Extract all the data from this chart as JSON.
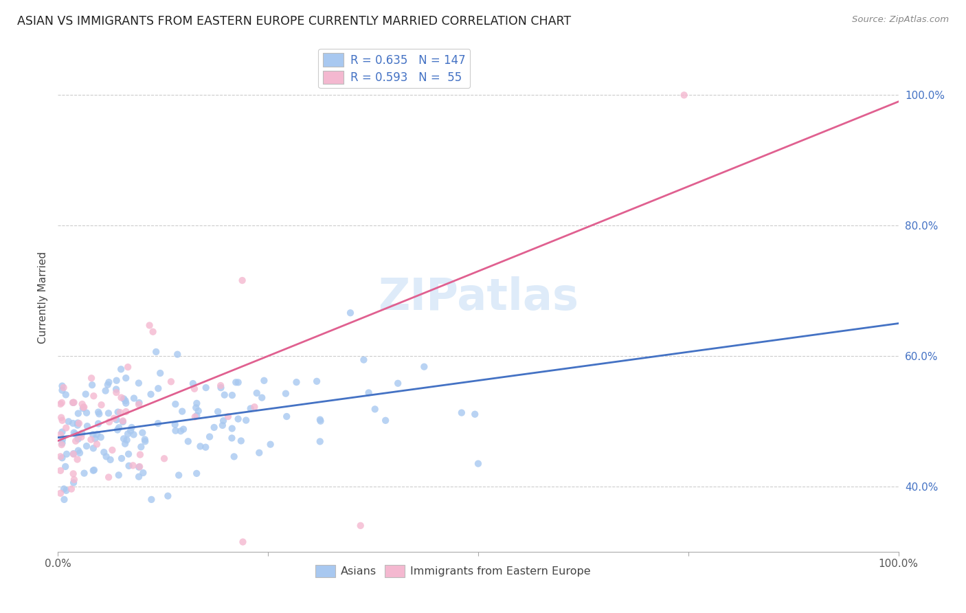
{
  "title": "ASIAN VS IMMIGRANTS FROM EASTERN EUROPE CURRENTLY MARRIED CORRELATION CHART",
  "source": "Source: ZipAtlas.com",
  "ylabel": "Currently Married",
  "color_asian": "#A8C8F0",
  "color_eastern": "#F4B8D0",
  "line_color_asian": "#4472C4",
  "line_color_eastern": "#E06090",
  "background_color": "#FFFFFF",
  "grid_color": "#CCCCCC",
  "watermark_color": "#C8DFF5",
  "right_tick_color": "#4472C4",
  "title_color": "#222222",
  "source_color": "#888888",
  "legend_text_color": "#4472C4",
  "bottom_legend_color": "#444444",
  "xlim": [
    0.0,
    1.0
  ],
  "ylim": [
    0.3,
    1.08
  ],
  "yticks_right": [
    0.4,
    0.6,
    0.8,
    1.0
  ],
  "ytick_labels_right": [
    "40.0%",
    "60.0%",
    "80.0%",
    "100.0%"
  ],
  "xticks": [
    0.0,
    0.25,
    0.5,
    0.75,
    1.0
  ],
  "xtick_labels": [
    "0.0%",
    "",
    "",
    "",
    "100.0%"
  ],
  "asian_slope": 0.175,
  "asian_intercept": 0.475,
  "eastern_slope": 0.52,
  "eastern_intercept": 0.47,
  "legend_R_asian": "R = 0.635",
  "legend_N_asian": "N = 147",
  "legend_R_eastern": "R = 0.593",
  "legend_N_eastern": "N =  55"
}
